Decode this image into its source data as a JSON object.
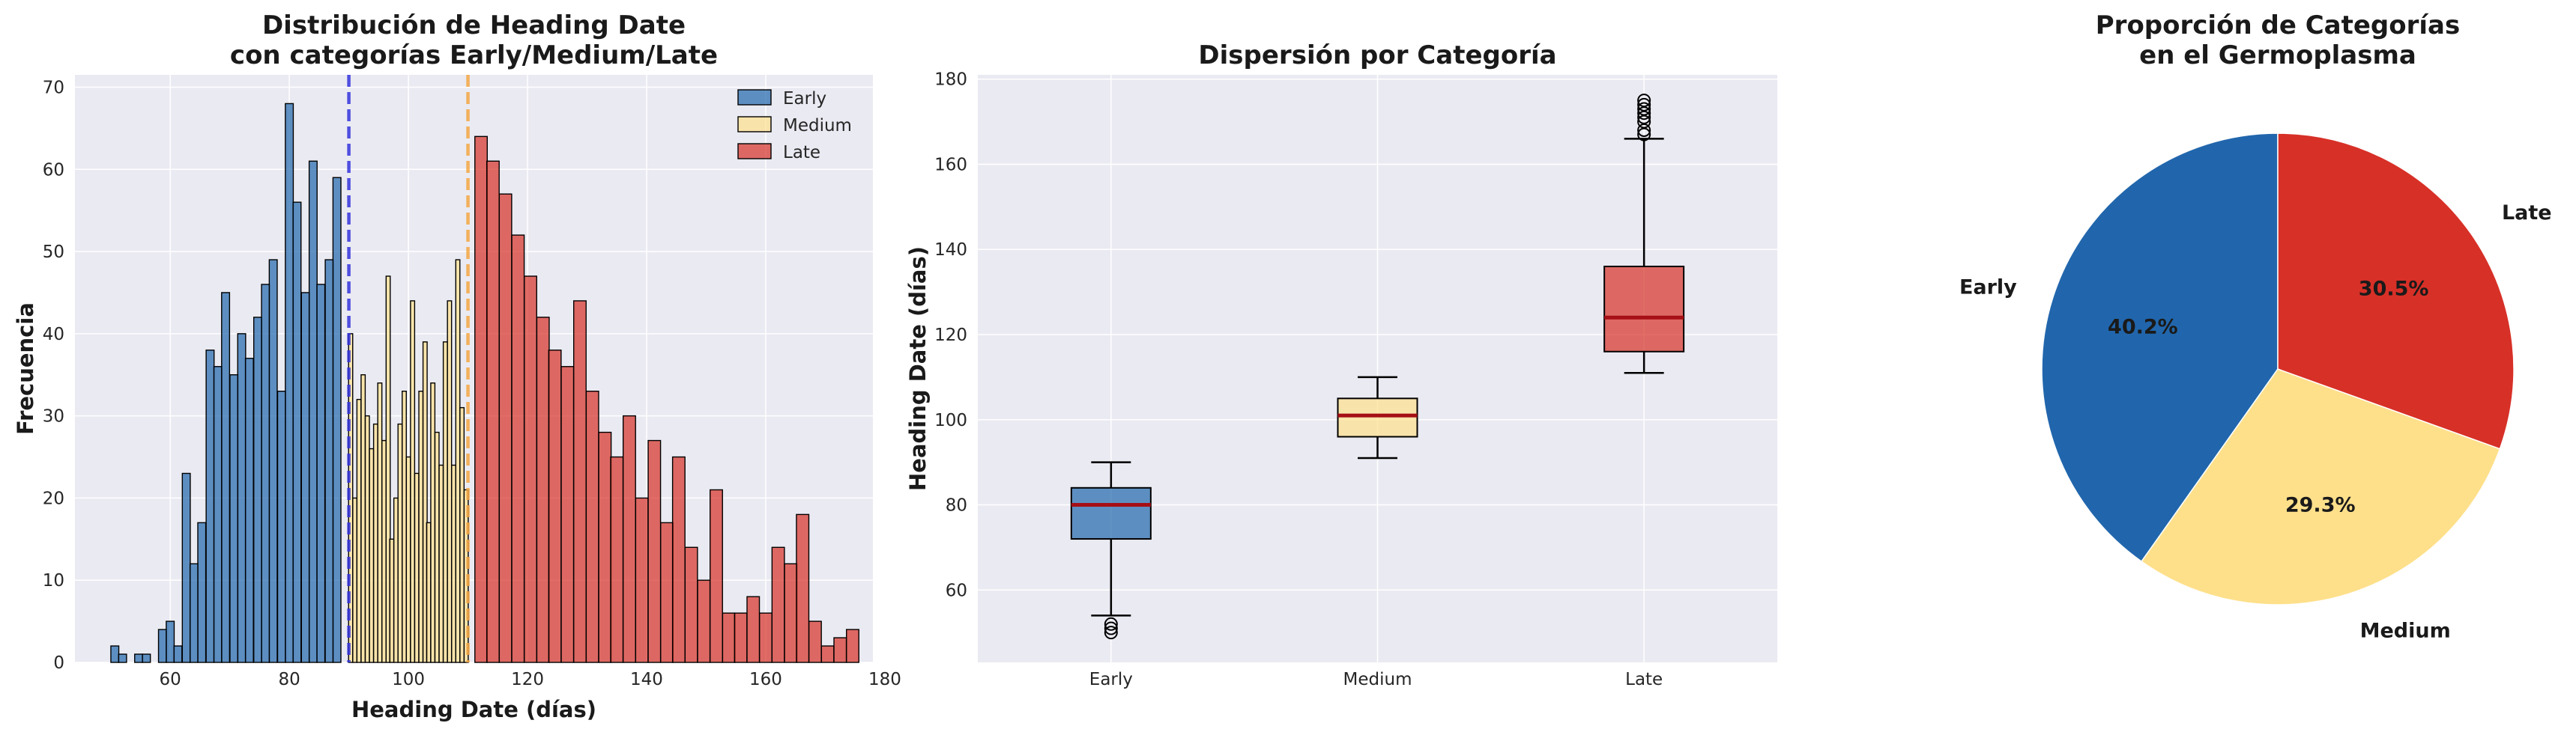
{
  "colors": {
    "early": "#2166ac",
    "medium": "#fee08b",
    "late": "#d73027",
    "axes_bg": "#eaeaf2",
    "grid": "#ffffff",
    "median": "#a50f15",
    "line_early": "#3333dd",
    "line_medium": "#f4a742"
  },
  "chart_data": [
    {
      "type": "bar",
      "title": "Distribución de Heading Date\ncon categorías Early/Medium/Late",
      "xlabel": "Heading Date (días)",
      "ylabel": "Frecuencia",
      "xlim": [
        44,
        178
      ],
      "ylim": [
        0,
        71.5
      ],
      "xticks": [
        60,
        80,
        100,
        120,
        140,
        160,
        180
      ],
      "yticks": [
        0,
        10,
        20,
        30,
        40,
        50,
        60,
        70
      ],
      "grid": true,
      "legend_placement": "top-right",
      "thresholds": [
        90,
        110
      ],
      "series": [
        {
          "name": "Early",
          "color_key": "early",
          "bin_width": 1.333,
          "x": [
            50.7,
            52.0,
            53.3,
            54.7,
            56.0,
            57.3,
            58.7,
            60.0,
            61.3,
            62.7,
            64.0,
            65.3,
            66.7,
            68.0,
            69.3,
            70.7,
            72.0,
            73.3,
            74.7,
            76.0,
            77.3,
            78.7,
            80.0,
            81.3,
            82.7,
            84.0,
            85.3,
            86.7,
            88.0,
            89.3
          ],
          "values": [
            2,
            1,
            0,
            1,
            1,
            0,
            4,
            5,
            2,
            23,
            12,
            17,
            38,
            36,
            45,
            35,
            40,
            37,
            42,
            46,
            49,
            33,
            68,
            56,
            45,
            61,
            46,
            49,
            59,
            0
          ]
        },
        {
          "name": "Medium",
          "color_key": "medium",
          "bin_width": 0.69,
          "x": [
            90.3,
            91.0,
            91.7,
            92.4,
            93.1,
            93.8,
            94.5,
            95.2,
            95.9,
            96.6,
            97.2,
            97.9,
            98.6,
            99.3,
            100.0,
            100.7,
            101.4,
            102.1,
            102.8,
            103.4,
            104.1,
            104.8,
            105.5,
            106.2,
            106.9,
            107.6,
            108.3,
            109.0,
            109.7
          ],
          "values": [
            40,
            20,
            32,
            35,
            30,
            26,
            29,
            34,
            27,
            47,
            15,
            20,
            29,
            33,
            25,
            44,
            23,
            33,
            39,
            17,
            34,
            28,
            24,
            39,
            44,
            24,
            49,
            31,
            21
          ]
        },
        {
          "name": "Late",
          "color_key": "late",
          "bin_width": 2.08,
          "x": [
            112.2,
            114.2,
            116.3,
            118.4,
            120.5,
            122.6,
            124.6,
            126.7,
            128.8,
            130.9,
            133.0,
            135.0,
            137.1,
            139.2,
            141.3,
            143.4,
            145.4,
            147.5,
            149.6,
            151.7,
            153.8,
            155.8,
            157.9,
            160.0,
            162.1,
            164.2,
            166.2,
            168.3,
            170.4,
            172.5,
            174.6
          ],
          "values": [
            64,
            61,
            57,
            52,
            47,
            42,
            38,
            36,
            44,
            33,
            28,
            25,
            30,
            20,
            27,
            17,
            25,
            14,
            10,
            21,
            6,
            6,
            8,
            6,
            14,
            12,
            18,
            5,
            2,
            3,
            4
          ]
        }
      ]
    },
    {
      "type": "box",
      "title": "Dispersión por Categoría",
      "xlabel": "",
      "ylabel": "Heading Date (días)",
      "ylim": [
        43,
        181
      ],
      "yticks": [
        60,
        80,
        100,
        120,
        140,
        160,
        180
      ],
      "categories": [
        "Early",
        "Medium",
        "Late"
      ],
      "grid": true,
      "boxes": [
        {
          "category": "Early",
          "color_key": "early",
          "whislo": 54,
          "q1": 72,
          "median": 80,
          "q3": 84,
          "whishi": 90,
          "fliers": [
            50,
            51,
            52
          ]
        },
        {
          "category": "Medium",
          "color_key": "medium",
          "whislo": 91,
          "q1": 96,
          "median": 101,
          "q3": 105,
          "whishi": 110,
          "fliers": []
        },
        {
          "category": "Late",
          "color_key": "late",
          "whislo": 111,
          "q1": 116,
          "median": 124,
          "q3": 136,
          "whishi": 166,
          "fliers": [
            167,
            168,
            170,
            171,
            172,
            173,
            174,
            175
          ]
        }
      ]
    },
    {
      "type": "pie",
      "title": "Proporción de Categorías\nen el Germoplasma",
      "start_angle": 90,
      "direction": "counterclockwise",
      "slices": [
        {
          "label": "Early",
          "value": 40.2,
          "pct_label": "40.2%",
          "color_key": "early"
        },
        {
          "label": "Medium",
          "value": 29.3,
          "pct_label": "29.3%",
          "color_key": "medium"
        },
        {
          "label": "Late",
          "value": 30.5,
          "pct_label": "30.5%",
          "color_key": "late"
        }
      ]
    }
  ]
}
